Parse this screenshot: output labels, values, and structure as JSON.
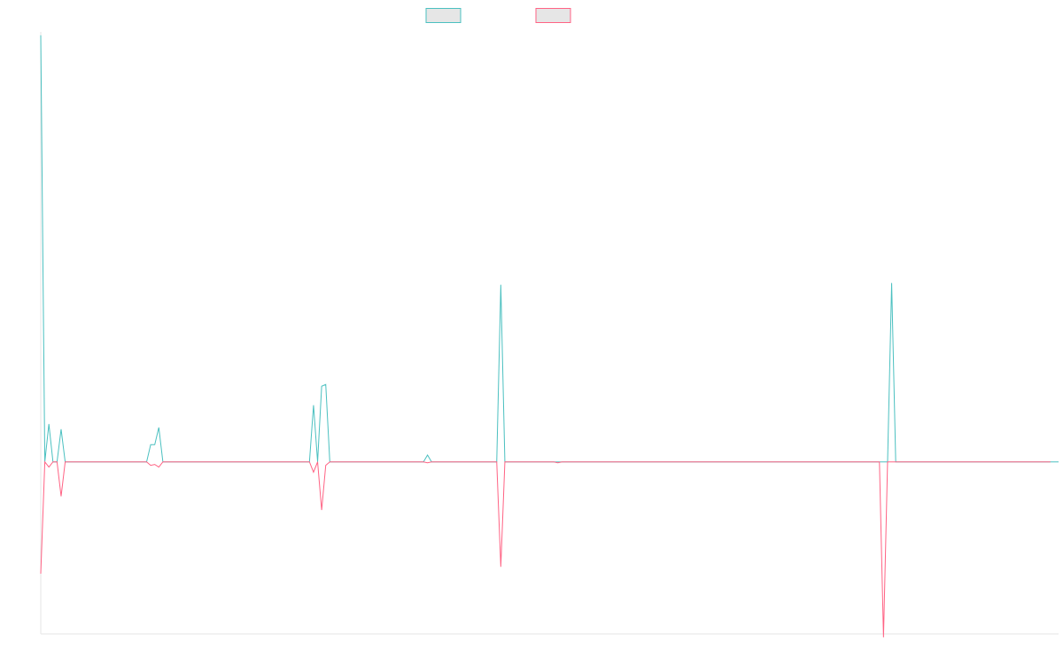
{
  "chart_data": {
    "type": "line",
    "ylim": [
      -1.0,
      2.5
    ],
    "grid": false,
    "legend": "top-center",
    "series": [
      {
        "color": "#4bc0c0",
        "values": [
          2.48,
          0.0,
          0.22,
          0.0,
          0.0,
          0.19,
          0.0,
          0.0,
          0.0,
          0.0,
          0.0,
          0.0,
          0.0,
          0.0,
          0.0,
          0.0,
          0.0,
          0.0,
          0.0,
          0.0,
          0.0,
          0.0,
          0.0,
          0.0,
          0.0,
          0.0,
          0.0,
          0.1,
          0.1,
          0.2,
          0.0,
          0.0,
          0.0,
          0.0,
          0.0,
          0.0,
          0.0,
          0.0,
          0.0,
          0.0,
          0.0,
          0.0,
          0.0,
          0.0,
          0.0,
          0.0,
          0.0,
          0.0,
          0.0,
          0.0,
          0.0,
          0.0,
          0.0,
          0.0,
          0.0,
          0.0,
          0.0,
          0.0,
          0.0,
          0.0,
          0.0,
          0.0,
          0.0,
          0.0,
          0.0,
          0.0,
          0.0,
          0.33,
          0.0,
          0.44,
          0.45,
          0.0,
          0.0,
          0.0,
          0.0,
          0.0,
          0.0,
          0.0,
          0.0,
          0.0,
          0.0,
          0.0,
          0.0,
          0.0,
          0.0,
          0.0,
          0.0,
          0.0,
          0.0,
          0.0,
          0.0,
          0.0,
          0.0,
          0.0,
          0.0,
          0.04,
          0.0,
          0.0,
          0.0,
          0.0,
          0.0,
          0.0,
          0.0,
          0.0,
          0.0,
          0.0,
          0.0,
          0.0,
          0.0,
          0.0,
          0.0,
          0.0,
          0.0,
          1.03,
          0.0,
          0.0,
          0.0,
          0.0,
          0.0,
          0.0,
          0.0,
          0.0,
          0.0,
          0.0,
          0.0,
          0.0,
          0.0,
          0.0,
          0.0,
          0.0,
          0.0,
          0.0,
          0.0,
          0.0,
          0.0,
          0.0,
          0.0,
          0.0,
          0.0,
          0.0,
          0.0,
          0.0,
          0.0,
          0.0,
          0.0,
          0.0,
          0.0,
          0.0,
          0.0,
          0.0,
          0.0,
          0.0,
          0.0,
          0.0,
          0.0,
          0.0,
          0.0,
          0.0,
          0.0,
          0.0,
          0.0,
          0.0,
          0.0,
          0.0,
          0.0,
          0.0,
          0.0,
          0.0,
          0.0,
          0.0,
          0.0,
          0.0,
          0.0,
          0.0,
          0.0,
          0.0,
          0.0,
          0.0,
          0.0,
          0.0,
          0.0,
          0.0,
          0.0,
          0.0,
          0.0,
          0.0,
          0.0,
          0.0,
          0.0,
          0.0,
          0.0,
          0.0,
          0.0,
          0.0,
          0.0,
          0.0,
          0.0,
          0.0,
          0.0,
          0.0,
          0.0,
          0.0,
          0.0,
          0.0,
          0.0,
          0.0,
          0.0,
          0.0,
          0.0,
          1.04,
          0.0,
          0.0,
          0.0,
          0.0,
          0.0,
          0.0,
          0.0,
          0.0,
          0.0,
          0.0,
          0.0,
          0.0,
          0.0,
          0.0,
          0.0,
          0.0,
          0.0,
          0.0,
          0.0,
          0.0,
          0.0,
          0.0,
          0.0,
          0.0,
          0.0,
          0.0,
          0.0,
          0.0,
          0.0,
          0.0,
          0.0,
          0.0,
          0.0,
          0.0,
          0.0,
          0.0,
          0.0,
          0.0,
          0.0,
          0.0,
          0.0
        ]
      },
      {
        "color": "#ff6384",
        "values": [
          -0.65,
          0.0,
          -0.03,
          0.0,
          0.0,
          -0.2,
          0.0,
          0.0,
          0.0,
          0.0,
          0.0,
          0.0,
          0.0,
          0.0,
          0.0,
          0.0,
          0.0,
          0.0,
          0.0,
          0.0,
          0.0,
          0.0,
          0.0,
          0.0,
          0.0,
          0.0,
          0.0,
          -0.02,
          -0.015,
          -0.03,
          0.0,
          0.0,
          0.0,
          0.0,
          0.0,
          0.0,
          0.0,
          0.0,
          0.0,
          0.0,
          0.0,
          0.0,
          0.0,
          0.0,
          0.0,
          0.0,
          0.0,
          0.0,
          0.0,
          0.0,
          0.0,
          0.0,
          0.0,
          0.0,
          0.0,
          0.0,
          0.0,
          0.0,
          0.0,
          0.0,
          0.0,
          0.0,
          0.0,
          0.0,
          0.0,
          0.0,
          0.0,
          -0.06,
          0.0,
          -0.28,
          -0.02,
          0.0,
          0.0,
          0.0,
          0.0,
          0.0,
          0.0,
          0.0,
          0.0,
          0.0,
          0.0,
          0.0,
          0.0,
          0.0,
          0.0,
          0.0,
          0.0,
          0.0,
          0.0,
          0.0,
          0.0,
          0.0,
          0.0,
          0.0,
          0.0,
          -0.005,
          0.0,
          0.0,
          0.0,
          0.0,
          0.0,
          0.0,
          0.0,
          0.0,
          0.0,
          0.0,
          0.0,
          0.0,
          0.0,
          0.0,
          0.0,
          0.0,
          0.0,
          -0.61,
          0.0,
          0.0,
          0.0,
          0.0,
          0.0,
          0.0,
          0.0,
          0.0,
          0.0,
          0.0,
          0.0,
          0.0,
          0.0,
          -0.005,
          0.0,
          0.0,
          0.0,
          0.0,
          0.0,
          0.0,
          0.0,
          0.0,
          0.0,
          0.0,
          0.0,
          0.0,
          0.0,
          0.0,
          0.0,
          0.0,
          0.0,
          0.0,
          0.0,
          0.0,
          0.0,
          0.0,
          0.0,
          0.0,
          0.0,
          0.0,
          0.0,
          0.0,
          0.0,
          0.0,
          0.0,
          0.0,
          0.0,
          0.0,
          0.0,
          0.0,
          0.0,
          0.0,
          0.0,
          0.0,
          0.0,
          0.0,
          0.0,
          0.0,
          0.0,
          0.0,
          0.0,
          0.0,
          0.0,
          0.0,
          0.0,
          0.0,
          0.0,
          0.0,
          0.0,
          0.0,
          0.0,
          0.0,
          0.0,
          0.0,
          0.0,
          0.0,
          0.0,
          0.0,
          0.0,
          0.0,
          0.0,
          0.0,
          0.0,
          0.0,
          0.0,
          0.0,
          0.0,
          0.0,
          0.0,
          0.0,
          0.0,
          0.0,
          0.0,
          -1.02,
          0.0,
          0.0,
          0.0,
          0.0,
          0.0,
          0.0,
          0.0,
          0.0,
          0.0,
          0.0,
          0.0,
          0.0,
          0.0,
          0.0,
          0.0,
          0.0,
          0.0,
          0.0,
          0.0,
          0.0,
          0.0,
          0.0,
          0.0,
          0.0,
          0.0,
          0.0,
          0.0,
          0.0,
          0.0,
          0.0,
          0.0,
          0.0,
          0.0,
          0.0,
          0.0,
          0.0,
          0.0,
          0.0,
          0.0,
          0.0,
          0.0
        ]
      }
    ]
  }
}
